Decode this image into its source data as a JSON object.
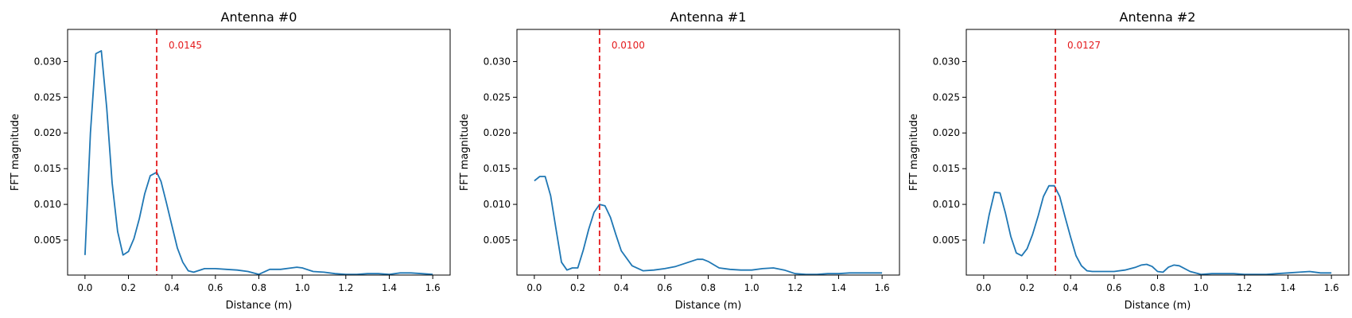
{
  "colors": {
    "line": "#1f77b4",
    "marker": "#e41a1c",
    "frame": "#000000"
  },
  "chart_data": [
    {
      "type": "line",
      "title": "Antenna #0",
      "xlabel": "Distance (m)",
      "ylabel": "FFT magnitude",
      "xlim": [
        -0.08,
        1.68
      ],
      "ylim": [
        0.0001,
        0.0345
      ],
      "xticks": [
        "0.0",
        "0.2",
        "0.4",
        "0.6",
        "0.8",
        "1.0",
        "1.2",
        "1.4",
        "1.6"
      ],
      "yticks": [
        "0.005",
        "0.010",
        "0.015",
        "0.020",
        "0.025",
        "0.030"
      ],
      "grid": false,
      "marker_x": 0.33,
      "annotation": "0.0145",
      "x": [
        0.0,
        0.025,
        0.05,
        0.075,
        0.1,
        0.125,
        0.15,
        0.175,
        0.2,
        0.225,
        0.25,
        0.275,
        0.3,
        0.33,
        0.35,
        0.375,
        0.4,
        0.425,
        0.45,
        0.475,
        0.5,
        0.55,
        0.6,
        0.65,
        0.7,
        0.75,
        0.8,
        0.85,
        0.9,
        0.95,
        0.975,
        1.0,
        1.05,
        1.1,
        1.15,
        1.2,
        1.25,
        1.3,
        1.35,
        1.4,
        1.45,
        1.5,
        1.55,
        1.6
      ],
      "y": [
        0.0029,
        0.02,
        0.0311,
        0.0315,
        0.0235,
        0.013,
        0.0062,
        0.0029,
        0.0034,
        0.0052,
        0.008,
        0.0115,
        0.014,
        0.0145,
        0.0132,
        0.0102,
        0.007,
        0.0039,
        0.0019,
        0.0007,
        0.0005,
        0.001,
        0.001,
        0.0009,
        0.0008,
        0.0006,
        0.0002,
        0.0009,
        0.0009,
        0.0011,
        0.0012,
        0.0011,
        0.0006,
        0.0005,
        0.0003,
        0.0002,
        0.0002,
        0.0003,
        0.0003,
        0.0002,
        0.0004,
        0.0004,
        0.0003,
        0.0002
      ]
    },
    {
      "type": "line",
      "title": "Antenna #1",
      "xlabel": "Distance (m)",
      "ylabel": "FFT magnitude",
      "xlim": [
        -0.08,
        1.68
      ],
      "ylim": [
        0.0001,
        0.0345
      ],
      "xticks": [
        "0.0",
        "0.2",
        "0.4",
        "0.6",
        "0.8",
        "1.0",
        "1.2",
        "1.4",
        "1.6"
      ],
      "yticks": [
        "0.005",
        "0.010",
        "0.015",
        "0.020",
        "0.025",
        "0.030"
      ],
      "grid": false,
      "marker_x": 0.3,
      "annotation": "0.0100",
      "x": [
        0.0,
        0.025,
        0.05,
        0.075,
        0.1,
        0.125,
        0.15,
        0.175,
        0.2,
        0.225,
        0.25,
        0.275,
        0.3,
        0.325,
        0.35,
        0.375,
        0.4,
        0.45,
        0.5,
        0.55,
        0.6,
        0.65,
        0.7,
        0.75,
        0.775,
        0.8,
        0.85,
        0.9,
        0.95,
        1.0,
        1.05,
        1.1,
        1.15,
        1.2,
        1.25,
        1.3,
        1.35,
        1.4,
        1.45,
        1.5,
        1.55,
        1.6
      ],
      "y": [
        0.0133,
        0.0139,
        0.0139,
        0.0112,
        0.0065,
        0.0019,
        0.0008,
        0.0011,
        0.0011,
        0.0036,
        0.0065,
        0.0089,
        0.01,
        0.0098,
        0.0082,
        0.0058,
        0.0035,
        0.0014,
        0.0007,
        0.0008,
        0.001,
        0.0013,
        0.0018,
        0.0023,
        0.0023,
        0.002,
        0.0011,
        0.0009,
        0.0008,
        0.0008,
        0.001,
        0.0011,
        0.0008,
        0.0003,
        0.0002,
        0.0002,
        0.0003,
        0.0003,
        0.0004,
        0.0004,
        0.0004,
        0.0004
      ]
    },
    {
      "type": "line",
      "title": "Antenna #2",
      "xlabel": "Distance (m)",
      "ylabel": "FFT magnitude",
      "xlim": [
        -0.08,
        1.68
      ],
      "ylim": [
        0.0001,
        0.0345
      ],
      "xticks": [
        "0.0",
        "0.2",
        "0.4",
        "0.6",
        "0.8",
        "1.0",
        "1.2",
        "1.4",
        "1.6"
      ],
      "yticks": [
        "0.005",
        "0.010",
        "0.015",
        "0.020",
        "0.025",
        "0.030"
      ],
      "grid": false,
      "marker_x": 0.33,
      "annotation": "0.0127",
      "x": [
        0.0,
        0.025,
        0.05,
        0.075,
        0.1,
        0.125,
        0.15,
        0.175,
        0.2,
        0.225,
        0.25,
        0.275,
        0.3,
        0.325,
        0.35,
        0.375,
        0.4,
        0.425,
        0.45,
        0.475,
        0.5,
        0.55,
        0.6,
        0.65,
        0.7,
        0.725,
        0.75,
        0.775,
        0.8,
        0.825,
        0.85,
        0.875,
        0.9,
        0.95,
        1.0,
        1.05,
        1.1,
        1.15,
        1.2,
        1.25,
        1.3,
        1.35,
        1.4,
        1.45,
        1.5,
        1.55,
        1.6
      ],
      "y": [
        0.0045,
        0.0085,
        0.0117,
        0.0116,
        0.0088,
        0.0055,
        0.0032,
        0.0028,
        0.0038,
        0.0058,
        0.0083,
        0.0111,
        0.0126,
        0.0126,
        0.0111,
        0.0082,
        0.0054,
        0.0028,
        0.0014,
        0.0007,
        0.0006,
        0.0006,
        0.0006,
        0.0008,
        0.0012,
        0.0015,
        0.0016,
        0.0013,
        0.0006,
        0.0005,
        0.0012,
        0.0015,
        0.0014,
        0.0006,
        0.0002,
        0.0003,
        0.0003,
        0.0003,
        0.0002,
        0.0002,
        0.0002,
        0.0003,
        0.0004,
        0.0005,
        0.0006,
        0.0004,
        0.0004
      ]
    }
  ]
}
